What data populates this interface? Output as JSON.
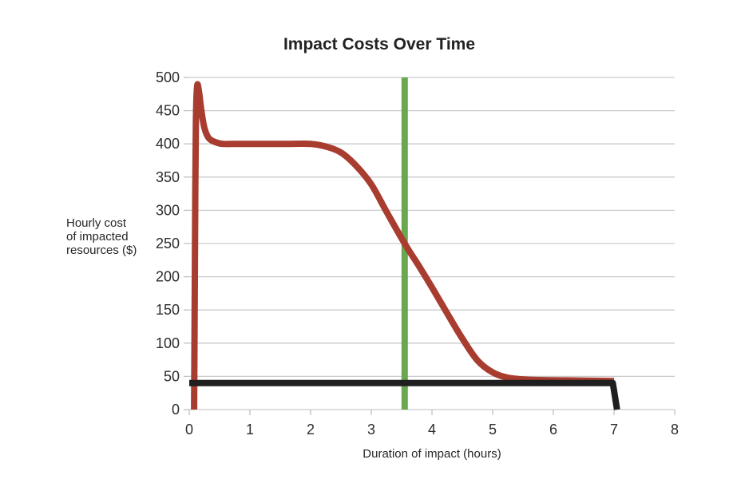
{
  "chart_data": {
    "type": "line",
    "title": "Impact Costs Over Time",
    "xlabel": "Duration of impact (hours)",
    "ylabel": "Hourly cost\nof impacted\nresources ($)",
    "xlim": [
      0,
      8
    ],
    "ylim": [
      0,
      500
    ],
    "x_ticks": [
      0,
      1,
      2,
      3,
      4,
      5,
      6,
      7,
      8
    ],
    "y_ticks": [
      0,
      50,
      100,
      150,
      200,
      250,
      300,
      350,
      400,
      450,
      500
    ],
    "grid": "horizontal",
    "legend": "none",
    "colors": {
      "grid": "#c9c9c9",
      "tick_mark": "#c0c0c0",
      "tick_text": "#2d2d2d",
      "title_text": "#222222",
      "background": "#ffffff"
    },
    "series": [
      {
        "name": "vertical-marker-line",
        "color": "#6aa84f",
        "width": 8,
        "smooth": false,
        "points": [
          [
            3.55,
            0
          ],
          [
            3.55,
            500
          ]
        ]
      },
      {
        "name": "impact-cost-curve",
        "color": "#a83c2f",
        "width": 8,
        "smooth": true,
        "points": [
          [
            0.08,
            0
          ],
          [
            0.09,
            160
          ],
          [
            0.1,
            330
          ],
          [
            0.11,
            435
          ],
          [
            0.13,
            487
          ],
          [
            0.16,
            479
          ],
          [
            0.2,
            450
          ],
          [
            0.25,
            424
          ],
          [
            0.32,
            409
          ],
          [
            0.42,
            403
          ],
          [
            0.55,
            400
          ],
          [
            0.8,
            400
          ],
          [
            1.2,
            400
          ],
          [
            1.6,
            400
          ],
          [
            2.0,
            400
          ],
          [
            2.25,
            396
          ],
          [
            2.5,
            387
          ],
          [
            2.75,
            367
          ],
          [
            3.0,
            339
          ],
          [
            3.25,
            298
          ],
          [
            3.55,
            250
          ],
          [
            3.8,
            214
          ],
          [
            4.0,
            184
          ],
          [
            4.25,
            145
          ],
          [
            4.5,
            107
          ],
          [
            4.75,
            74
          ],
          [
            5.0,
            56
          ],
          [
            5.25,
            48
          ],
          [
            5.6,
            45
          ],
          [
            6.2,
            44
          ],
          [
            7.0,
            43
          ]
        ]
      },
      {
        "name": "baseline-flat-line",
        "color": "#1f1f1f",
        "width": 8,
        "smooth": false,
        "points": [
          [
            0,
            40
          ],
          [
            6.98,
            40
          ],
          [
            7.05,
            0
          ]
        ]
      }
    ]
  }
}
